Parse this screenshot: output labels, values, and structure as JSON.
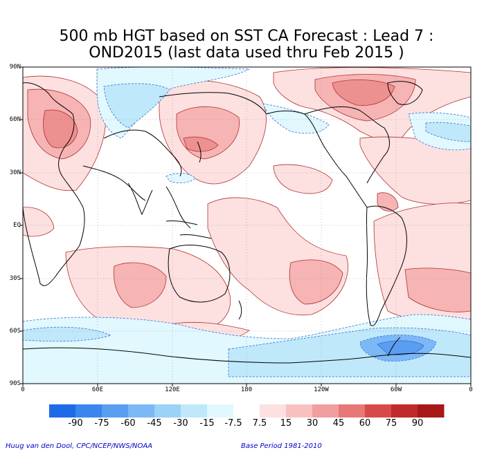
{
  "title": {
    "line1": "500 mb HGT based on SST CA Forecast : Lead 7 :",
    "line2": "OND2015 (last data used thru Feb 2015 )"
  },
  "axes": {
    "lat_labels": [
      "90N",
      "60N",
      "30N",
      "EQ",
      "30S",
      "60S",
      "90S"
    ],
    "lon_labels": [
      "0",
      "60E",
      "120E",
      "180",
      "120W",
      "60W",
      "0"
    ]
  },
  "colorbar": {
    "labels": [
      "-90",
      "-75",
      "-60",
      "-45",
      "-30",
      "-15",
      "-7.5",
      "7.5",
      "15",
      "30",
      "45",
      "60",
      "75",
      "90"
    ],
    "colors": [
      "#1f6ae8",
      "#3a86ee",
      "#5a9ef2",
      "#7cb8f6",
      "#9ad2f8",
      "#bfe8fb",
      "#e0f8fe",
      "#ffffff",
      "#fde0e0",
      "#f9c0c0",
      "#f29e9e",
      "#e87878",
      "#d84a4a",
      "#c02a2a",
      "#a81818"
    ]
  },
  "map": {
    "ocean_color": "#ffffff",
    "coast_color": "#000000",
    "contour_color": "#b03030",
    "neg_contour_color": "#3a6ad0"
  },
  "footer": {
    "left": "Huug van den Dool, CPC/NCEP/NWS/NOAA",
    "right": "Base Period 1981-2010"
  }
}
